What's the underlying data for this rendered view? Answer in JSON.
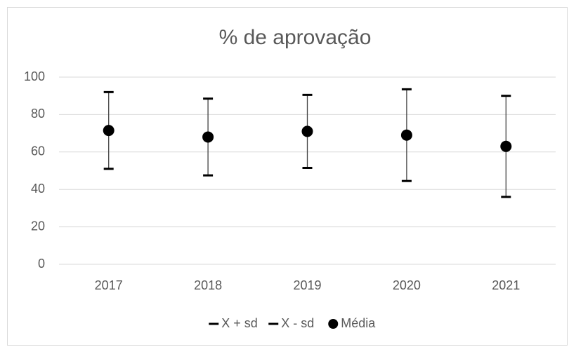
{
  "chart_data": {
    "type": "line",
    "title": "% de aprovação",
    "categories": [
      "2017",
      "2018",
      "2019",
      "2020",
      "2021"
    ],
    "series": [
      {
        "name": "X + sd",
        "color": "#000000",
        "marker": "dash",
        "values": [
          92,
          88.5,
          90.5,
          93.5,
          90
        ]
      },
      {
        "name": "X - sd",
        "color": "#000000",
        "marker": "dash",
        "values": [
          51,
          47.5,
          51.5,
          44.5,
          36
        ]
      },
      {
        "name": "Média",
        "color": "#000000",
        "marker": "circle",
        "values": [
          71.5,
          68,
          71,
          69,
          63
        ]
      }
    ],
    "high_low_lines": true,
    "ylim": [
      0,
      100
    ],
    "yticks": [
      0,
      20,
      40,
      60,
      80,
      100
    ],
    "grid": true,
    "legend": "bottom"
  }
}
